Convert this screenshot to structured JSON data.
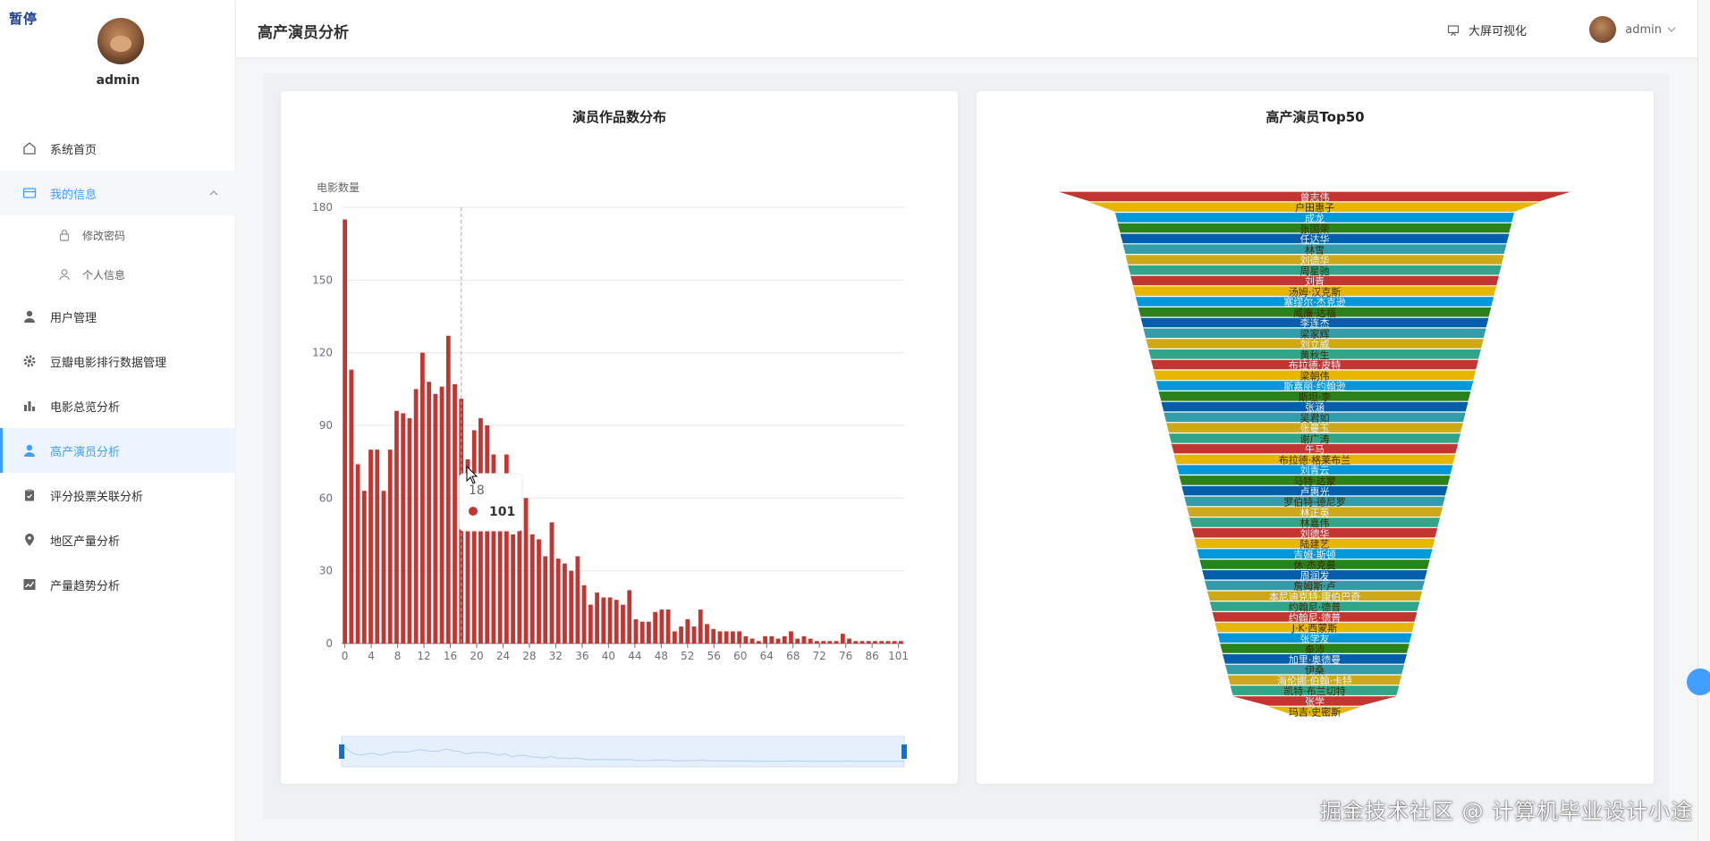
{
  "overlay": {
    "paused_label": "暂停"
  },
  "sidebar": {
    "username": "admin",
    "items": [
      {
        "label": "系统首页",
        "icon": "home-icon"
      },
      {
        "label": "我的信息",
        "icon": "card-icon",
        "open": true
      },
      {
        "label": "修改密码",
        "icon": "lock-icon",
        "sub": true
      },
      {
        "label": "个人信息",
        "icon": "user-outline-icon",
        "sub": true
      },
      {
        "label": "用户管理",
        "icon": "user-icon"
      },
      {
        "label": "豆瓣电影排行数据管理",
        "icon": "gear-icon"
      },
      {
        "label": "电影总览分析",
        "icon": "bar-chart-icon"
      },
      {
        "label": "高产演员分析",
        "icon": "user-icon",
        "active": true
      },
      {
        "label": "评分投票关联分析",
        "icon": "clipboard-icon"
      },
      {
        "label": "地区产量分析",
        "icon": "location-icon"
      },
      {
        "label": "产量趋势分析",
        "icon": "trend-icon"
      }
    ]
  },
  "header": {
    "title": "高产演员分析",
    "bigscreen_label": "大屏可视化",
    "username": "admin"
  },
  "watermark": "掘金技术社区 @ 计算机毕业设计小途",
  "colors": {
    "accent": "#409eff",
    "bar": "#c23531",
    "funnel_palette": [
      "#c23531",
      "#e6b600",
      "#0098d9",
      "#2b821d",
      "#005eaa",
      "#339ca8",
      "#cda819",
      "#32a487"
    ]
  },
  "chart_data": [
    {
      "type": "bar",
      "title": "演员作品数分布",
      "ylabel": "电影数量",
      "ylim": [
        0,
        180
      ],
      "yticks": [
        0,
        30,
        60,
        90,
        120,
        150,
        180
      ],
      "xtick_labels": [
        "0",
        "4",
        "8",
        "12",
        "16",
        "20",
        "24",
        "28",
        "32",
        "36",
        "40",
        "44",
        "48",
        "52",
        "56",
        "60",
        "64",
        "68",
        "72",
        "76",
        "86",
        "101"
      ],
      "values": [
        175,
        113,
        74,
        63,
        80,
        80,
        63,
        80,
        96,
        95,
        93,
        105,
        120,
        108,
        103,
        106,
        127,
        107,
        101,
        76,
        88,
        93,
        90,
        78,
        62,
        78,
        45,
        59,
        60,
        45,
        43,
        36,
        50,
        35,
        33,
        30,
        36,
        24,
        16,
        21,
        19,
        19,
        18,
        16,
        22,
        10,
        9,
        9,
        13,
        14,
        14,
        5,
        7,
        10,
        7,
        14,
        8,
        6,
        5,
        5,
        5,
        5,
        3,
        2,
        1,
        3,
        3,
        2,
        3,
        5,
        2,
        3,
        2,
        1,
        1,
        1,
        1,
        4,
        2,
        1,
        1,
        1,
        1,
        1,
        1,
        1,
        1
      ],
      "tooltip": {
        "x": "18",
        "value": "101"
      },
      "zoom_range": [
        0,
        100
      ]
    },
    {
      "type": "funnel",
      "title": "高产演员Top50",
      "names": [
        "曾志伟",
        "户田惠子",
        "成龙",
        "张国荣",
        "任达华",
        "林雪",
        "刘德华",
        "周星驰",
        "刘青",
        "汤姆·汉克斯",
        "塞缪尔·杰克逊",
        "威廉·达福",
        "李连杰",
        "梁家辉",
        "刘立威",
        "黄秋生",
        "布拉德·皮特",
        "梁朝伟",
        "斯嘉丽·约翰逊",
        "斯坦·李",
        "张涵",
        "吴君如",
        "张曼玉",
        "谢广涛",
        "午马",
        "布拉德·格莱布兰",
        "刘青云",
        "马特·达蒙",
        "卢惠光",
        "罗伯特·德尼罗",
        "林正英",
        "林嘉伟",
        "刘德华",
        "陆建艺",
        "吉姆·斯顿",
        "休·杰克曼",
        "周润发",
        "詹姆斯·卢",
        "本尼迪克特·康伯巴奇",
        "约翰尼·德普",
        "约翰尼·德普",
        "J·K·西蒙斯",
        "张学友",
        "秦沛",
        "加里·奥德曼",
        "伊桑",
        "海伦娜·伯翰·卡特",
        "凯特·布兰切特",
        "张学",
        "玛吉·史密斯"
      ],
      "values": [
        100,
        88,
        78,
        77,
        76,
        75,
        74,
        73,
        72,
        71,
        70,
        69,
        68,
        67,
        66,
        65,
        64,
        63,
        62,
        61,
        60,
        59,
        58,
        57,
        56,
        55,
        54,
        53,
        52,
        51,
        50,
        49,
        48,
        47,
        46,
        45,
        44,
        43,
        42,
        41,
        40,
        39,
        38,
        37,
        36,
        35,
        34,
        33,
        32,
        18
      ]
    }
  ]
}
